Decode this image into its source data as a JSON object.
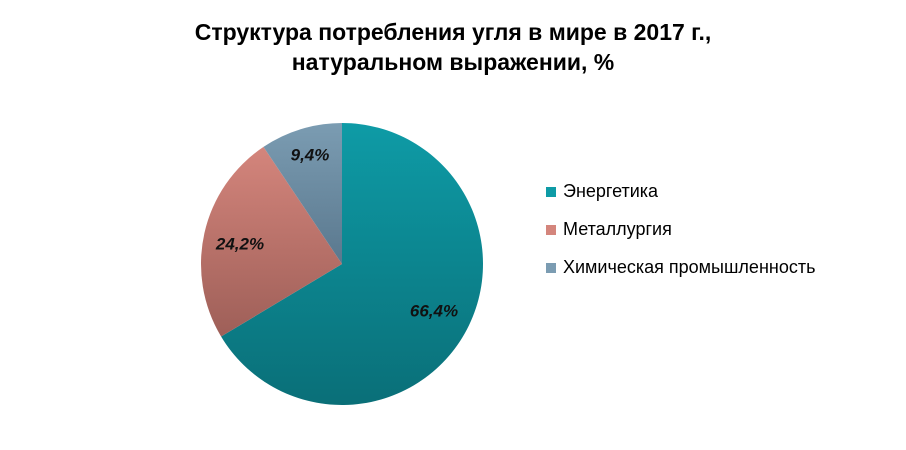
{
  "chart_data": {
    "type": "pie",
    "title": "Структура потребления угля в мире в 2017 г., натуральном выражении, %",
    "title_lines": [
      "Структура потребления угля в мире в 2017 г.,",
      "натуральном выражении, %"
    ],
    "legend_position": "right",
    "slices": [
      {
        "name": "Энергетика",
        "value": 66.4,
        "label": "66,4%",
        "color": "#0E9BA6",
        "color_dark": "#0A6F78"
      },
      {
        "name": "Металлургия",
        "value": 24.2,
        "label": "24,2%",
        "color": "#D4857C",
        "color_dark": "#9E5F58"
      },
      {
        "name": "Химическая промышленность",
        "value": 9.4,
        "label": "9,4%",
        "color": "#7B9CB2",
        "color_dark": "#5A788E"
      }
    ]
  }
}
